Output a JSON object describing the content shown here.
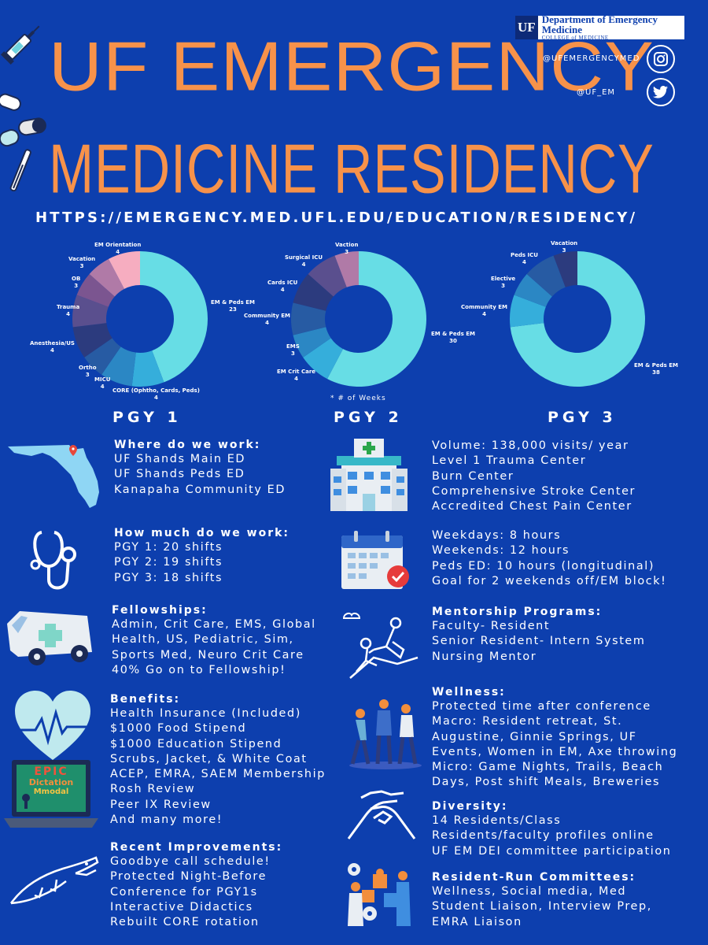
{
  "header": {
    "title_line1": "UF EMERGENCY",
    "title_line2": "MEDICINE RESIDENCY",
    "url": "HTTPS://EMERGENCY.MED.UFL.EDU/EDUCATION/RESIDENCY/"
  },
  "logo": {
    "mark": "UF",
    "department": "Department of Emergency Medicine",
    "college": "COLLEGE of MEDICINE"
  },
  "social": {
    "instagram": "@UFEMERGENCYMED",
    "twitter": "@UF_EM"
  },
  "chart_data": [
    {
      "type": "pie",
      "title": "PGY 1",
      "unit": "# of Weeks",
      "categories": [
        "EM & Peds EM",
        "CORE (Ophtho, Cards, Peds)",
        "MICU",
        "Ortho",
        "Anesthesia/US",
        "Trauma",
        "OB",
        "Vacation",
        "EM Orientation"
      ],
      "values": [
        23,
        4,
        4,
        3,
        4,
        4,
        3,
        3,
        4
      ],
      "colors": [
        "#67dde5",
        "#35aedb",
        "#2b87c4",
        "#275ba3",
        "#2c3b7e",
        "#5a4f8e",
        "#7b5590",
        "#b07aa7",
        "#f6adc0"
      ]
    },
    {
      "type": "pie",
      "title": "PGY 2",
      "unit": "# of Weeks",
      "categories": [
        "EM & Peds EM",
        "EM Crit Care",
        "EMS",
        "Community EM",
        "Cards ICU",
        "Surgical ICU",
        "Vaction"
      ],
      "values": [
        30,
        4,
        3,
        4,
        4,
        4,
        3
      ],
      "colors": [
        "#67dde5",
        "#35aedb",
        "#2b87c4",
        "#275ba3",
        "#2c3b7e",
        "#5a4f8e",
        "#b07aa7"
      ]
    },
    {
      "type": "pie",
      "title": "PGY 3",
      "unit": "# of Weeks",
      "categories": [
        "EM & Peds EM",
        "Community EM",
        "Elective",
        "Peds ICU",
        "Vacation"
      ],
      "values": [
        38,
        4,
        3,
        4,
        3
      ],
      "colors": [
        "#67dde5",
        "#35aedb",
        "#2b87c4",
        "#275ba3",
        "#2c3b7e"
      ]
    }
  ],
  "weeks_note": "* # of Weeks",
  "pgy_titles": [
    "PGY 1",
    "PGY 2",
    "PGY 3"
  ],
  "laptop_screen": {
    "line1": "EPIC",
    "line2": "Dictation",
    "line3": "Mmodal"
  },
  "sections": [
    {
      "title": "Where do we work:",
      "lines": [
        "UF Shands Main ED",
        "UF Shands Peds ED",
        "Kanapaha Community ED"
      ]
    },
    {
      "title": "",
      "lines": [
        "Volume: 138,000 visits/ year",
        "Level 1 Trauma Center",
        "Burn Center",
        "Comprehensive Stroke Center",
        "Accredited Chest Pain Center"
      ]
    },
    {
      "title": "How much do we work:",
      "lines": [
        "PGY 1: 20 shifts",
        "PGY 2: 19 shifts",
        "PGY 3: 18 shifts"
      ]
    },
    {
      "title": "",
      "lines": [
        "Weekdays: 8 hours",
        "Weekends: 12 hours",
        "Peds ED: 10 hours (longitudinal)",
        "Goal for 2 weekends off/EM block!"
      ]
    },
    {
      "title": "Fellowships:",
      "lines": [
        "Admin, Crit Care, EMS, Global",
        "Health, US, Pediatric, Sim,",
        "Sports Med, Neuro Crit Care",
        "40% Go on to Fellowship!"
      ]
    },
    {
      "title": "Mentorship Programs:",
      "lines": [
        "Faculty- Resident",
        "Senior Resident- Intern System",
        "Nursing Mentor"
      ]
    },
    {
      "title": "Benefits:",
      "lines": [
        "Health Insurance (Included)",
        "$1000 Food Stipend",
        "$1000 Education Stipend",
        "Scrubs, Jacket, & White Coat",
        "ACEP, EMRA, SAEM Membership",
        "Rosh Review",
        "Peer IX Review",
        "And many more!"
      ]
    },
    {
      "title": "Wellness:",
      "lines": [
        "Protected time after conference",
        "Macro: Resident retreat, St.",
        "Augustine, Ginnie Springs, UF",
        "Events, Women in EM, Axe throwing",
        "Micro: Game Nights, Trails, Beach",
        "Days, Post shift Meals, Breweries"
      ]
    },
    {
      "title": "Diversity:",
      "lines": [
        "14 Residents/Class",
        "Residents/faculty profiles online",
        "UF EM DEI committee participation"
      ]
    },
    {
      "title": "Recent Improvements:",
      "lines": [
        "Goodbye call schedule!",
        "Protected Night-Before",
        "Conference for PGY1s",
        "Interactive Didactics",
        "Rebuilt CORE rotation"
      ]
    },
    {
      "title": "Resident-Run Committees:",
      "lines": [
        "Wellness, Social media, Med",
        "Student Liaison, Interview Prep,",
        "EMRA Liaison"
      ]
    }
  ]
}
